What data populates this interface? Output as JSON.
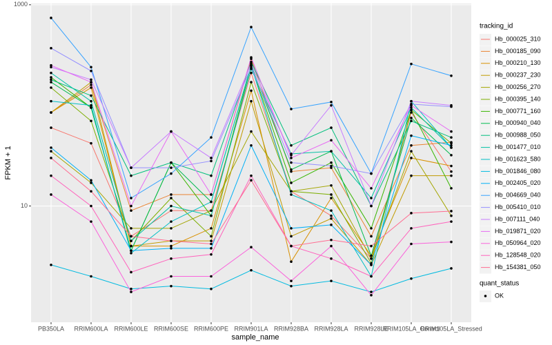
{
  "chart_data": {
    "type": "line",
    "x_label": "sample_name",
    "y_label": "FPKM + 1",
    "log_scale": true,
    "grid": true,
    "legend_position": "right",
    "legend_title": "tracking_id",
    "point_legend_title": "quant_status",
    "point_legend_items": [
      "OK"
    ],
    "point_color": "#000000",
    "categories": [
      "PB350LA",
      "RRIM600LA",
      "RRIM600LE",
      "RRIM600SE",
      "RRIM600PE",
      "RRIM901LA",
      "RRIM928BA",
      "RRIM928LA",
      "RRIM928LE",
      "RRIM105LA_Control",
      "RRIM105LA_Stressed"
    ],
    "ylim": [
      0.7,
      1030
    ],
    "yticks": [
      10,
      1000
    ],
    "series": [
      {
        "name": "Hb_000025_310",
        "color": "#F8766D",
        "values": [
          60,
          42,
          5,
          9,
          9,
          210,
          14,
          8,
          3,
          85,
          22
        ]
      },
      {
        "name": "Hb_000185_090",
        "color": "#EA8331",
        "values": [
          85,
          160,
          9,
          13,
          13,
          290,
          22,
          24,
          5,
          40,
          43
        ]
      },
      {
        "name": "Hb_000210_130",
        "color": "#D89000",
        "values": [
          85,
          150,
          4,
          4,
          6,
          140,
          2.8,
          12,
          3.2,
          30,
          25
        ]
      },
      {
        "name": "Hb_000237_230",
        "color": "#C09B00",
        "values": [
          85,
          170,
          4,
          4.5,
          4.5,
          110,
          5,
          7.5,
          2.6,
          20,
          20
        ]
      },
      {
        "name": "Hb_000256_270",
        "color": "#A3A500",
        "values": [
          35,
          17,
          6,
          6,
          9,
          55,
          14,
          16,
          3,
          35,
          8
        ]
      },
      {
        "name": "Hb_000395_140",
        "color": "#7CAE00",
        "values": [
          150,
          70,
          4.5,
          12,
          5,
          170,
          14,
          13,
          2.7,
          90,
          42
        ]
      },
      {
        "name": "Hb_000771_160",
        "color": "#39B600",
        "values": [
          190,
          95,
          3.6,
          27,
          8,
          250,
          17,
          27,
          6,
          90,
          15
        ]
      },
      {
        "name": "Hb_000940_040",
        "color": "#00BB4E",
        "values": [
          170,
          95,
          3.6,
          27,
          11,
          250,
          23,
          35,
          3.2,
          75,
          32
        ]
      },
      {
        "name": "Hb_000988_050",
        "color": "#00BF7D",
        "values": [
          180,
          125,
          20,
          27,
          20,
          270,
          40,
          60,
          10,
          70,
          48
        ]
      },
      {
        "name": "Hb_001477_010",
        "color": "#00C1A3",
        "values": [
          210,
          110,
          4.5,
          10,
          8,
          230,
          33,
          35,
          12,
          95,
          38
        ]
      },
      {
        "name": "Hb_001623_580",
        "color": "#00BFC4",
        "values": [
          110,
          100,
          3.4,
          7,
          11,
          250,
          13,
          9,
          2,
          110,
          38
        ]
      },
      {
        "name": "Hb_001846_080",
        "color": "#00BAE0",
        "values": [
          2.6,
          2,
          1.5,
          1.6,
          1.5,
          2.3,
          1.6,
          1.8,
          1.4,
          1.9,
          2.4
        ]
      },
      {
        "name": "Hb_002405_020",
        "color": "#00B0F6",
        "values": [
          38,
          18,
          3.6,
          3.8,
          3.8,
          40,
          6,
          6.5,
          2.6,
          50,
          40
        ]
      },
      {
        "name": "Hb_004669_040",
        "color": "#35A2FF",
        "values": [
          740,
          240,
          12,
          21,
          48,
          600,
          92,
          108,
          21,
          258,
          197
        ]
      },
      {
        "name": "Hb_005410_010",
        "color": "#9590FF",
        "values": [
          370,
          220,
          24,
          24,
          28,
          240,
          27,
          25,
          21,
          103,
          97
        ]
      },
      {
        "name": "Hb_007111_040",
        "color": "#C77CFF",
        "values": [
          240,
          180,
          24,
          55,
          30,
          260,
          32,
          100,
          10,
          110,
          100
        ]
      },
      {
        "name": "Hb_019871_020",
        "color": "#E76BF3",
        "values": [
          250,
          170,
          10,
          55,
          13,
          300,
          30,
          45,
          15,
          100,
          55
        ]
      },
      {
        "name": "Hb_050964_020",
        "color": "#FA62DB",
        "values": [
          13,
          7,
          1.4,
          2.0,
          2.0,
          3.9,
          1.8,
          4.0,
          1.3,
          4.2,
          4.4
        ]
      },
      {
        "name": "Hb_128548_020",
        "color": "#FF62BC",
        "values": [
          20,
          10,
          2.2,
          3.0,
          3.3,
          20,
          4,
          3,
          2,
          6,
          7
        ]
      },
      {
        "name": "Hb_154381_050",
        "color": "#FF6C91",
        "values": [
          30,
          14,
          5,
          4.5,
          4.2,
          18,
          4,
          4.6,
          4,
          8.5,
          8.9
        ]
      }
    ]
  }
}
